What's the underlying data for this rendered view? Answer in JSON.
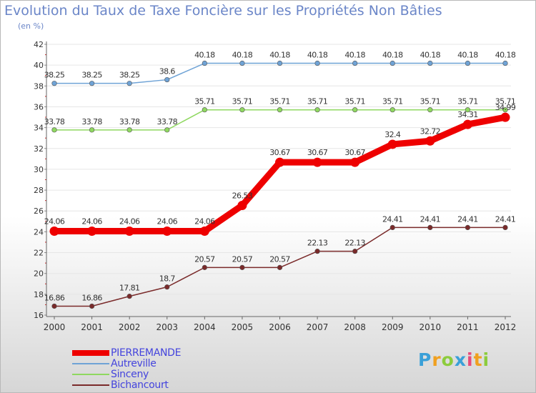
{
  "title": "Evolution du Taux de Taxe Foncière sur les Propriétés Non Bâties",
  "unit": "(en %)",
  "brand": {
    "name": "Proxiti",
    "letters": [
      {
        "char": "P",
        "color": "#3aa0d8"
      },
      {
        "char": "r",
        "color": "#f0a020"
      },
      {
        "char": "o",
        "color": "#8ccc3c"
      },
      {
        "char": "x",
        "color": "#3aa0d8"
      },
      {
        "char": "i",
        "color": "#e84a7a"
      },
      {
        "char": "t",
        "color": "#f0a020"
      },
      {
        "char": "i",
        "color": "#8ccc3c"
      }
    ]
  },
  "chart_data": {
    "type": "line",
    "title": "Evolution du Taux de Taxe Foncière sur les Propriétés Non Bâties",
    "ylabel": "(en %)",
    "xlabel": "",
    "ylim": [
      16,
      42
    ],
    "yticks": [
      16,
      18,
      20,
      22,
      24,
      26,
      28,
      30,
      32,
      34,
      36,
      38,
      40,
      42
    ],
    "grid": true,
    "legend_position": "bottom-left",
    "categories": [
      "2000",
      "2001",
      "2002",
      "2003",
      "2004",
      "2005",
      "2006",
      "2007",
      "2008",
      "2009",
      "2010",
      "2011",
      "2012"
    ],
    "series": [
      {
        "name": "PIERREMANDE",
        "color": "#ee0000",
        "label_color": "#4444dd",
        "emphasis": true,
        "values": [
          24.06,
          24.06,
          24.06,
          24.06,
          24.06,
          26.53,
          30.67,
          30.67,
          30.67,
          32.4,
          32.72,
          34.31,
          34.99
        ],
        "labels": [
          "24.06",
          "24.06",
          "24.06",
          "24.06",
          "24.06",
          "26.53",
          "30.67",
          "30.67",
          "30.67",
          "32.4",
          "32.72",
          "34.31",
          "34.99"
        ]
      },
      {
        "name": "Autreville",
        "color": "#6fa3d6",
        "label_color": "#4444dd",
        "emphasis": false,
        "values": [
          38.25,
          38.25,
          38.25,
          38.6,
          40.18,
          40.18,
          40.18,
          40.18,
          40.18,
          40.18,
          40.18,
          40.18,
          40.18
        ],
        "labels": [
          "38.25",
          "38.25",
          "38.25",
          "38.6",
          "40.18",
          "40.18",
          "40.18",
          "40.18",
          "40.18",
          "40.18",
          "40.18",
          "40.18",
          "40.18"
        ]
      },
      {
        "name": "Sinceny",
        "color": "#8fd860",
        "label_color": "#4444dd",
        "emphasis": false,
        "values": [
          33.78,
          33.78,
          33.78,
          33.78,
          35.71,
          35.71,
          35.71,
          35.71,
          35.71,
          35.71,
          35.71,
          35.71,
          35.71
        ],
        "labels": [
          "33.78",
          "33.78",
          "33.78",
          "33.78",
          "35.71",
          "35.71",
          "35.71",
          "35.71",
          "35.71",
          "35.71",
          "35.71",
          "35.71",
          "35.71"
        ]
      },
      {
        "name": "Bichancourt",
        "color": "#7a2a2a",
        "label_color": "#4444dd",
        "emphasis": false,
        "values": [
          16.86,
          16.86,
          17.81,
          18.7,
          20.57,
          20.57,
          20.57,
          22.13,
          22.13,
          24.41,
          24.41,
          24.41,
          24.41
        ],
        "labels": [
          "16.86",
          "16.86",
          "17.81",
          "18.7",
          "20.57",
          "20.57",
          "20.57",
          "22.13",
          "22.13",
          "24.41",
          "24.41",
          "24.41",
          "24.41"
        ]
      }
    ]
  }
}
